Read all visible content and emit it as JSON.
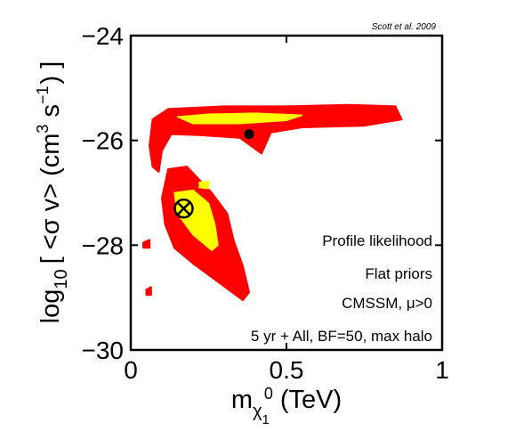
{
  "chart_data": {
    "type": "contour",
    "credit": "Scott et al. 2009",
    "xlabel": {
      "main": "m",
      "sub": "χ",
      "subsub": "1",
      "sup": "0",
      "unit": "(TeV)"
    },
    "ylabel": {
      "prefix": "log",
      "base": "10",
      "body": "[ <σ v> (cm",
      "pow1": "3",
      "mid": " s",
      "pow2": "−1",
      "suffix": ") ]"
    },
    "xlim": [
      0,
      1
    ],
    "ylim": [
      -30,
      -24
    ],
    "xticks": [
      "0",
      "0.5",
      "1"
    ],
    "yticks": [
      "−24",
      "−26",
      "−28",
      "−30"
    ],
    "ytick_values": [
      -24,
      -26,
      -28,
      -30
    ],
    "xtick_values": [
      0,
      0.5,
      1
    ],
    "annotations": [
      "Profile likelihood",
      "Flat priors",
      "CMSSM, μ>0",
      "5 yr + All, BF=50, max halo"
    ],
    "levels": [
      {
        "name": "2σ region",
        "color": "#ff0000"
      },
      {
        "name": "1σ region",
        "color": "#ffff00"
      }
    ],
    "regions_outer": [
      [
        [
          0.06,
          -26.1
        ],
        [
          0.07,
          -25.6
        ],
        [
          0.12,
          -25.4
        ],
        [
          0.3,
          -25.35
        ],
        [
          0.5,
          -25.35
        ],
        [
          0.7,
          -25.32
        ],
        [
          0.85,
          -25.35
        ],
        [
          0.87,
          -25.6
        ],
        [
          0.75,
          -25.72
        ],
        [
          0.55,
          -25.75
        ],
        [
          0.45,
          -25.85
        ],
        [
          0.42,
          -26.25
        ],
        [
          0.35,
          -25.95
        ],
        [
          0.22,
          -25.9
        ],
        [
          0.13,
          -25.88
        ],
        [
          0.1,
          -26.2
        ],
        [
          0.09,
          -26.6
        ],
        [
          0.07,
          -26.5
        ]
      ],
      [
        [
          0.12,
          -26.55
        ],
        [
          0.18,
          -26.5
        ],
        [
          0.22,
          -26.75
        ],
        [
          0.26,
          -27.0
        ],
        [
          0.31,
          -27.4
        ],
        [
          0.33,
          -27.9
        ],
        [
          0.36,
          -28.4
        ],
        [
          0.38,
          -28.9
        ],
        [
          0.36,
          -29.05
        ],
        [
          0.28,
          -28.7
        ],
        [
          0.2,
          -28.35
        ],
        [
          0.14,
          -28.05
        ],
        [
          0.11,
          -27.6
        ],
        [
          0.1,
          -27.1
        ]
      ],
      [
        [
          0.04,
          -27.95
        ],
        [
          0.06,
          -27.9
        ],
        [
          0.06,
          -28.05
        ],
        [
          0.04,
          -28.05
        ]
      ],
      [
        [
          0.05,
          -28.85
        ],
        [
          0.065,
          -28.8
        ],
        [
          0.065,
          -28.95
        ],
        [
          0.05,
          -28.95
        ]
      ]
    ],
    "regions_inner": [
      [
        [
          0.15,
          -25.55
        ],
        [
          0.25,
          -25.5
        ],
        [
          0.4,
          -25.48
        ],
        [
          0.55,
          -25.52
        ],
        [
          0.5,
          -25.62
        ],
        [
          0.35,
          -25.68
        ],
        [
          0.2,
          -25.68
        ]
      ],
      [
        [
          0.14,
          -27.0
        ],
        [
          0.2,
          -26.95
        ],
        [
          0.25,
          -27.2
        ],
        [
          0.27,
          -27.6
        ],
        [
          0.28,
          -28.0
        ],
        [
          0.26,
          -28.1
        ],
        [
          0.2,
          -27.8
        ],
        [
          0.15,
          -27.4
        ]
      ],
      [
        [
          0.22,
          -26.8
        ],
        [
          0.25,
          -26.78
        ],
        [
          0.25,
          -26.92
        ],
        [
          0.22,
          -26.9
        ]
      ]
    ],
    "markers": [
      {
        "name": "best-fit",
        "x": 0.38,
        "y": -25.88,
        "symbol": "filled-circle"
      },
      {
        "name": "posterior-mean",
        "x": 0.17,
        "y": -27.3,
        "symbol": "circle-cross"
      }
    ]
  }
}
